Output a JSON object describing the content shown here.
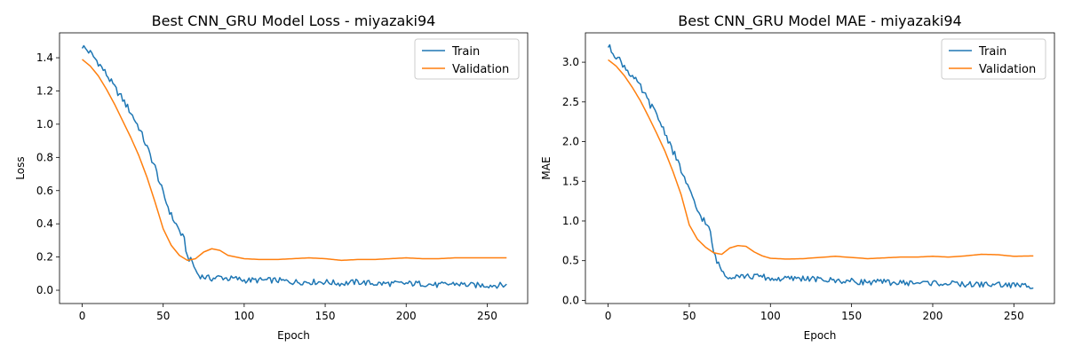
{
  "chart_data": [
    {
      "type": "line",
      "title": "Best CNN_GRU Model Loss - miyazaki94",
      "xlabel": "Epoch",
      "ylabel": "Loss",
      "xlim": [
        -14,
        275
      ],
      "ylim": [
        -0.08,
        1.55
      ],
      "xticks": [
        0,
        50,
        100,
        150,
        200,
        250
      ],
      "yticks": [
        0.0,
        0.2,
        0.4,
        0.6,
        0.8,
        1.0,
        1.2,
        1.4
      ],
      "ytick_labels": [
        "0.0",
        "0.2",
        "0.4",
        "0.6",
        "0.8",
        "1.0",
        "1.2",
        "1.4"
      ],
      "grid": false,
      "legend": "top-right",
      "series": [
        {
          "name": "Train",
          "color": "#1f77b4",
          "points": [
            [
              0,
              1.47
            ],
            [
              5,
              1.43
            ],
            [
              10,
              1.37
            ],
            [
              15,
              1.3
            ],
            [
              20,
              1.22
            ],
            [
              25,
              1.15
            ],
            [
              30,
              1.07
            ],
            [
              35,
              0.98
            ],
            [
              40,
              0.86
            ],
            [
              45,
              0.74
            ],
            [
              50,
              0.58
            ],
            [
              55,
              0.45
            ],
            [
              60,
              0.36
            ],
            [
              63,
              0.3
            ],
            [
              65,
              0.2
            ],
            [
              68,
              0.17
            ],
            [
              70,
              0.12
            ],
            [
              72,
              0.09
            ],
            [
              75,
              0.08
            ],
            [
              80,
              0.07
            ],
            [
              85,
              0.08
            ],
            [
              90,
              0.07
            ],
            [
              95,
              0.07
            ],
            [
              100,
              0.06
            ],
            [
              110,
              0.06
            ],
            [
              120,
              0.06
            ],
            [
              130,
              0.05
            ],
            [
              140,
              0.05
            ],
            [
              150,
              0.05
            ],
            [
              160,
              0.04
            ],
            [
              170,
              0.05
            ],
            [
              180,
              0.04
            ],
            [
              190,
              0.04
            ],
            [
              200,
              0.04
            ],
            [
              210,
              0.04
            ],
            [
              220,
              0.03
            ],
            [
              230,
              0.04
            ],
            [
              240,
              0.03
            ],
            [
              250,
              0.03
            ],
            [
              262,
              0.03
            ]
          ]
        },
        {
          "name": "Validation",
          "color": "#ff7f0e",
          "points": [
            [
              0,
              1.39
            ],
            [
              5,
              1.35
            ],
            [
              10,
              1.29
            ],
            [
              15,
              1.21
            ],
            [
              20,
              1.12
            ],
            [
              25,
              1.02
            ],
            [
              30,
              0.92
            ],
            [
              35,
              0.81
            ],
            [
              40,
              0.68
            ],
            [
              45,
              0.53
            ],
            [
              50,
              0.37
            ],
            [
              55,
              0.27
            ],
            [
              60,
              0.21
            ],
            [
              65,
              0.18
            ],
            [
              70,
              0.19
            ],
            [
              75,
              0.23
            ],
            [
              80,
              0.25
            ],
            [
              85,
              0.24
            ],
            [
              90,
              0.21
            ],
            [
              95,
              0.2
            ],
            [
              100,
              0.19
            ],
            [
              110,
              0.185
            ],
            [
              120,
              0.185
            ],
            [
              130,
              0.19
            ],
            [
              140,
              0.195
            ],
            [
              150,
              0.19
            ],
            [
              160,
              0.18
            ],
            [
              170,
              0.185
            ],
            [
              180,
              0.185
            ],
            [
              190,
              0.19
            ],
            [
              200,
              0.195
            ],
            [
              210,
              0.19
            ],
            [
              220,
              0.19
            ],
            [
              230,
              0.195
            ],
            [
              240,
              0.195
            ],
            [
              250,
              0.195
            ],
            [
              262,
              0.195
            ]
          ]
        }
      ]
    },
    {
      "type": "line",
      "title": "Best CNN_GRU Model MAE - miyazaki94",
      "xlabel": "Epoch",
      "ylabel": "MAE",
      "xlim": [
        -14,
        275
      ],
      "ylim": [
        -0.04,
        3.37
      ],
      "xticks": [
        0,
        50,
        100,
        150,
        200,
        250
      ],
      "yticks": [
        0.0,
        0.5,
        1.0,
        1.5,
        2.0,
        2.5,
        3.0
      ],
      "ytick_labels": [
        "0.0",
        "0.5",
        "1.0",
        "1.5",
        "2.0",
        "2.5",
        "3.0"
      ],
      "grid": false,
      "legend": "top-right",
      "series": [
        {
          "name": "Train",
          "color": "#1f77b4",
          "points": [
            [
              0,
              3.2
            ],
            [
              5,
              3.08
            ],
            [
              10,
              2.95
            ],
            [
              15,
              2.82
            ],
            [
              20,
              2.68
            ],
            [
              25,
              2.5
            ],
            [
              30,
              2.33
            ],
            [
              35,
              2.12
            ],
            [
              40,
              1.88
            ],
            [
              45,
              1.64
            ],
            [
              50,
              1.38
            ],
            [
              55,
              1.13
            ],
            [
              60,
              0.98
            ],
            [
              63,
              0.85
            ],
            [
              65,
              0.6
            ],
            [
              68,
              0.45
            ],
            [
              70,
              0.38
            ],
            [
              72,
              0.32
            ],
            [
              75,
              0.3
            ],
            [
              80,
              0.32
            ],
            [
              85,
              0.3
            ],
            [
              90,
              0.3
            ],
            [
              95,
              0.3
            ],
            [
              100,
              0.27
            ],
            [
              110,
              0.27
            ],
            [
              120,
              0.28
            ],
            [
              130,
              0.26
            ],
            [
              140,
              0.25
            ],
            [
              150,
              0.24
            ],
            [
              160,
              0.23
            ],
            [
              170,
              0.23
            ],
            [
              180,
              0.22
            ],
            [
              190,
              0.22
            ],
            [
              200,
              0.22
            ],
            [
              210,
              0.21
            ],
            [
              220,
              0.2
            ],
            [
              230,
              0.2
            ],
            [
              240,
              0.2
            ],
            [
              250,
              0.19
            ],
            [
              262,
              0.18
            ]
          ]
        },
        {
          "name": "Validation",
          "color": "#ff7f0e",
          "points": [
            [
              0,
              3.03
            ],
            [
              5,
              2.95
            ],
            [
              10,
              2.83
            ],
            [
              15,
              2.68
            ],
            [
              20,
              2.51
            ],
            [
              25,
              2.31
            ],
            [
              30,
              2.1
            ],
            [
              35,
              1.88
            ],
            [
              40,
              1.62
            ],
            [
              45,
              1.33
            ],
            [
              50,
              0.95
            ],
            [
              55,
              0.77
            ],
            [
              60,
              0.67
            ],
            [
              65,
              0.6
            ],
            [
              70,
              0.58
            ],
            [
              75,
              0.66
            ],
            [
              80,
              0.69
            ],
            [
              85,
              0.68
            ],
            [
              90,
              0.61
            ],
            [
              95,
              0.56
            ],
            [
              100,
              0.53
            ],
            [
              110,
              0.52
            ],
            [
              120,
              0.525
            ],
            [
              130,
              0.54
            ],
            [
              140,
              0.555
            ],
            [
              150,
              0.54
            ],
            [
              160,
              0.525
            ],
            [
              170,
              0.535
            ],
            [
              180,
              0.545
            ],
            [
              190,
              0.545
            ],
            [
              200,
              0.555
            ],
            [
              210,
              0.545
            ],
            [
              220,
              0.56
            ],
            [
              230,
              0.58
            ],
            [
              240,
              0.575
            ],
            [
              250,
              0.555
            ],
            [
              262,
              0.56
            ]
          ]
        }
      ]
    }
  ]
}
